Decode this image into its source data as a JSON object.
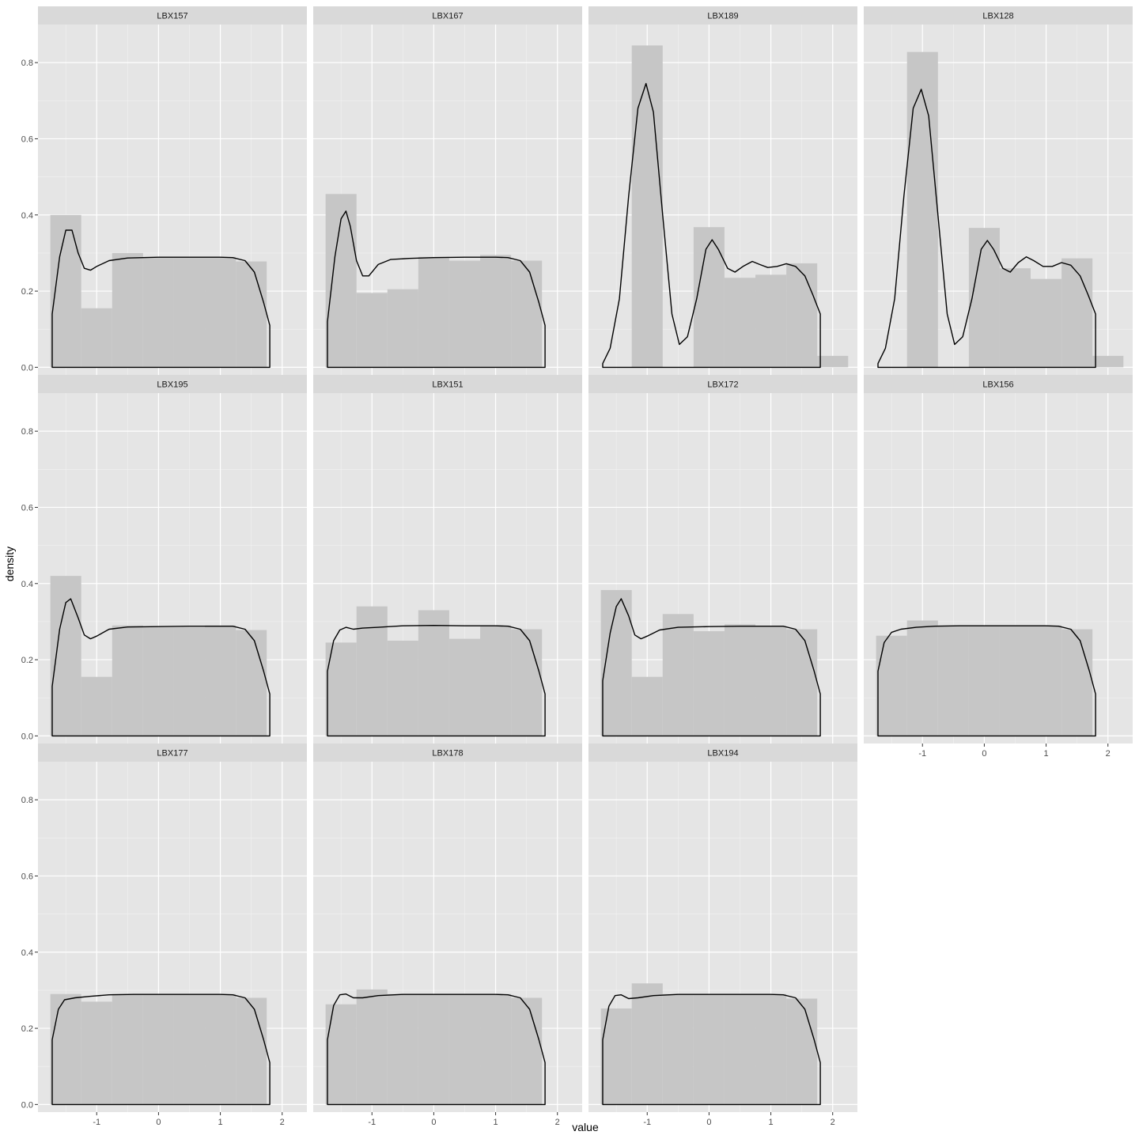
{
  "chart_data": {
    "type": "faceted-histogram-density",
    "xlabel": "value",
    "ylabel": "density",
    "xlim": [
      -1.95,
      2.4
    ],
    "ylim": [
      -0.02,
      0.9
    ],
    "x_ticks": [
      -1,
      0,
      1,
      2
    ],
    "x_tick_labels": [
      "-1",
      "0",
      "1",
      "2"
    ],
    "y_ticks": [
      0,
      0.2,
      0.4,
      0.6,
      0.8
    ],
    "y_tick_labels": [
      "0.0",
      "0.2",
      "0.4",
      "0.6",
      "0.8"
    ],
    "grid": true,
    "colors": {
      "panel_bg": "#e5e5e5",
      "strip_bg": "#d9d9d9",
      "grid": "#ffffff",
      "bar_fill": "#c6c6c6",
      "density_line": "#000000"
    },
    "bin_edges": [
      -1.75,
      -1.25,
      -0.75,
      -0.25,
      0.25,
      0.75,
      1.25,
      1.75,
      2.25
    ],
    "density_range": [
      -1.72,
      1.8
    ],
    "facets": [
      {
        "label": "LBX157",
        "bars": [
          0.4,
          0.155,
          0.3,
          0.29,
          0.29,
          0.29,
          0.278,
          0
        ],
        "density": [
          [
            -1.72,
            0.14
          ],
          [
            -1.6,
            0.29
          ],
          [
            -1.5,
            0.36
          ],
          [
            -1.4,
            0.36
          ],
          [
            -1.3,
            0.3
          ],
          [
            -1.2,
            0.26
          ],
          [
            -1.1,
            0.255
          ],
          [
            -1.0,
            0.265
          ],
          [
            -0.8,
            0.28
          ],
          [
            -0.5,
            0.287
          ],
          [
            0,
            0.289
          ],
          [
            0.5,
            0.289
          ],
          [
            1.0,
            0.289
          ],
          [
            1.2,
            0.288
          ],
          [
            1.4,
            0.28
          ],
          [
            1.55,
            0.25
          ],
          [
            1.7,
            0.17
          ],
          [
            1.8,
            0.11
          ]
        ]
      },
      {
        "label": "LBX167",
        "bars": [
          0.455,
          0.195,
          0.205,
          0.29,
          0.28,
          0.295,
          0.28,
          0
        ],
        "density": [
          [
            -1.72,
            0.12
          ],
          [
            -1.6,
            0.29
          ],
          [
            -1.5,
            0.39
          ],
          [
            -1.42,
            0.41
          ],
          [
            -1.35,
            0.37
          ],
          [
            -1.25,
            0.28
          ],
          [
            -1.15,
            0.24
          ],
          [
            -1.05,
            0.24
          ],
          [
            -0.9,
            0.27
          ],
          [
            -0.7,
            0.283
          ],
          [
            -0.4,
            0.286
          ],
          [
            0,
            0.288
          ],
          [
            0.5,
            0.289
          ],
          [
            1.0,
            0.289
          ],
          [
            1.2,
            0.288
          ],
          [
            1.4,
            0.28
          ],
          [
            1.55,
            0.25
          ],
          [
            1.7,
            0.17
          ],
          [
            1.8,
            0.11
          ]
        ]
      },
      {
        "label": "LBX189",
        "bars": [
          0,
          0.845,
          0,
          0.368,
          0.235,
          0.243,
          0.273,
          0.03
        ],
        "density": [
          [
            -1.72,
            0.01
          ],
          [
            -1.6,
            0.05
          ],
          [
            -1.45,
            0.18
          ],
          [
            -1.3,
            0.45
          ],
          [
            -1.15,
            0.68
          ],
          [
            -1.02,
            0.745
          ],
          [
            -0.9,
            0.67
          ],
          [
            -0.75,
            0.4
          ],
          [
            -0.6,
            0.14
          ],
          [
            -0.48,
            0.06
          ],
          [
            -0.35,
            0.08
          ],
          [
            -0.2,
            0.18
          ],
          [
            -0.05,
            0.31
          ],
          [
            0.05,
            0.335
          ],
          [
            0.15,
            0.31
          ],
          [
            0.3,
            0.26
          ],
          [
            0.42,
            0.25
          ],
          [
            0.55,
            0.265
          ],
          [
            0.7,
            0.278
          ],
          [
            0.82,
            0.27
          ],
          [
            0.95,
            0.262
          ],
          [
            1.1,
            0.265
          ],
          [
            1.25,
            0.272
          ],
          [
            1.4,
            0.265
          ],
          [
            1.55,
            0.24
          ],
          [
            1.68,
            0.19
          ],
          [
            1.8,
            0.14
          ]
        ]
      },
      {
        "label": "LBX128",
        "bars": [
          0,
          0.828,
          0,
          0.366,
          0.26,
          0.232,
          0.286,
          0.03
        ],
        "density": [
          [
            -1.72,
            0.01
          ],
          [
            -1.6,
            0.05
          ],
          [
            -1.45,
            0.18
          ],
          [
            -1.3,
            0.45
          ],
          [
            -1.15,
            0.68
          ],
          [
            -1.02,
            0.73
          ],
          [
            -0.9,
            0.66
          ],
          [
            -0.75,
            0.4
          ],
          [
            -0.6,
            0.14
          ],
          [
            -0.48,
            0.06
          ],
          [
            -0.35,
            0.08
          ],
          [
            -0.2,
            0.18
          ],
          [
            -0.05,
            0.31
          ],
          [
            0.05,
            0.333
          ],
          [
            0.15,
            0.31
          ],
          [
            0.3,
            0.26
          ],
          [
            0.42,
            0.25
          ],
          [
            0.55,
            0.275
          ],
          [
            0.68,
            0.29
          ],
          [
            0.8,
            0.28
          ],
          [
            0.95,
            0.265
          ],
          [
            1.1,
            0.265
          ],
          [
            1.25,
            0.275
          ],
          [
            1.4,
            0.268
          ],
          [
            1.55,
            0.24
          ],
          [
            1.68,
            0.19
          ],
          [
            1.8,
            0.14
          ]
        ]
      },
      {
        "label": "LBX195",
        "bars": [
          0.42,
          0.155,
          0.29,
          0.285,
          0.285,
          0.29,
          0.278,
          0
        ],
        "density": [
          [
            -1.72,
            0.13
          ],
          [
            -1.6,
            0.28
          ],
          [
            -1.5,
            0.35
          ],
          [
            -1.42,
            0.36
          ],
          [
            -1.3,
            0.31
          ],
          [
            -1.2,
            0.265
          ],
          [
            -1.1,
            0.255
          ],
          [
            -1.0,
            0.262
          ],
          [
            -0.8,
            0.28
          ],
          [
            -0.5,
            0.286
          ],
          [
            0,
            0.287
          ],
          [
            0.5,
            0.288
          ],
          [
            1.0,
            0.288
          ],
          [
            1.2,
            0.288
          ],
          [
            1.4,
            0.28
          ],
          [
            1.55,
            0.25
          ],
          [
            1.7,
            0.17
          ],
          [
            1.8,
            0.11
          ]
        ]
      },
      {
        "label": "LBX151",
        "bars": [
          0.245,
          0.34,
          0.25,
          0.33,
          0.255,
          0.29,
          0.28,
          0
        ],
        "density": [
          [
            -1.72,
            0.17
          ],
          [
            -1.62,
            0.25
          ],
          [
            -1.52,
            0.278
          ],
          [
            -1.42,
            0.285
          ],
          [
            -1.3,
            0.28
          ],
          [
            -1.15,
            0.283
          ],
          [
            -0.9,
            0.285
          ],
          [
            -0.5,
            0.289
          ],
          [
            0,
            0.29
          ],
          [
            0.5,
            0.289
          ],
          [
            1.0,
            0.289
          ],
          [
            1.2,
            0.288
          ],
          [
            1.4,
            0.28
          ],
          [
            1.55,
            0.25
          ],
          [
            1.7,
            0.17
          ],
          [
            1.8,
            0.11
          ]
        ]
      },
      {
        "label": "LBX172",
        "bars": [
          0.383,
          0.155,
          0.32,
          0.275,
          0.293,
          0.288,
          0.28,
          0
        ],
        "density": [
          [
            -1.72,
            0.145
          ],
          [
            -1.6,
            0.27
          ],
          [
            -1.5,
            0.34
          ],
          [
            -1.42,
            0.36
          ],
          [
            -1.3,
            0.315
          ],
          [
            -1.2,
            0.265
          ],
          [
            -1.1,
            0.255
          ],
          [
            -1.0,
            0.262
          ],
          [
            -0.8,
            0.278
          ],
          [
            -0.5,
            0.285
          ],
          [
            0,
            0.287
          ],
          [
            0.5,
            0.288
          ],
          [
            1.0,
            0.288
          ],
          [
            1.2,
            0.288
          ],
          [
            1.4,
            0.28
          ],
          [
            1.55,
            0.25
          ],
          [
            1.7,
            0.17
          ],
          [
            1.8,
            0.11
          ]
        ]
      },
      {
        "label": "LBX156",
        "bars": [
          0.263,
          0.303,
          0.29,
          0.29,
          0.29,
          0.29,
          0.28,
          0
        ],
        "density": [
          [
            -1.72,
            0.17
          ],
          [
            -1.62,
            0.245
          ],
          [
            -1.5,
            0.272
          ],
          [
            -1.35,
            0.28
          ],
          [
            -1.1,
            0.285
          ],
          [
            -0.8,
            0.288
          ],
          [
            -0.4,
            0.289
          ],
          [
            0,
            0.289
          ],
          [
            0.5,
            0.289
          ],
          [
            1.0,
            0.289
          ],
          [
            1.2,
            0.288
          ],
          [
            1.4,
            0.28
          ],
          [
            1.55,
            0.25
          ],
          [
            1.7,
            0.17
          ],
          [
            1.8,
            0.11
          ]
        ]
      },
      {
        "label": "LBX177",
        "bars": [
          0.29,
          0.27,
          0.29,
          0.29,
          0.29,
          0.29,
          0.28,
          0
        ],
        "density": [
          [
            -1.72,
            0.17
          ],
          [
            -1.62,
            0.25
          ],
          [
            -1.52,
            0.275
          ],
          [
            -1.35,
            0.28
          ],
          [
            -1.1,
            0.284
          ],
          [
            -0.8,
            0.288
          ],
          [
            -0.4,
            0.289
          ],
          [
            0,
            0.289
          ],
          [
            0.5,
            0.289
          ],
          [
            1.0,
            0.289
          ],
          [
            1.2,
            0.288
          ],
          [
            1.4,
            0.28
          ],
          [
            1.55,
            0.25
          ],
          [
            1.7,
            0.17
          ],
          [
            1.8,
            0.11
          ]
        ]
      },
      {
        "label": "LBX178",
        "bars": [
          0.263,
          0.302,
          0.29,
          0.29,
          0.29,
          0.29,
          0.28,
          0
        ],
        "density": [
          [
            -1.72,
            0.17
          ],
          [
            -1.62,
            0.26
          ],
          [
            -1.52,
            0.288
          ],
          [
            -1.42,
            0.29
          ],
          [
            -1.3,
            0.28
          ],
          [
            -1.15,
            0.28
          ],
          [
            -0.9,
            0.286
          ],
          [
            -0.5,
            0.289
          ],
          [
            0,
            0.289
          ],
          [
            0.5,
            0.289
          ],
          [
            1.0,
            0.289
          ],
          [
            1.2,
            0.288
          ],
          [
            1.4,
            0.28
          ],
          [
            1.55,
            0.25
          ],
          [
            1.7,
            0.17
          ],
          [
            1.8,
            0.11
          ]
        ]
      },
      {
        "label": "LBX194",
        "bars": [
          0.252,
          0.318,
          0.29,
          0.29,
          0.29,
          0.29,
          0.278,
          0
        ],
        "density": [
          [
            -1.72,
            0.17
          ],
          [
            -1.62,
            0.258
          ],
          [
            -1.52,
            0.286
          ],
          [
            -1.42,
            0.288
          ],
          [
            -1.3,
            0.278
          ],
          [
            -1.15,
            0.28
          ],
          [
            -0.9,
            0.286
          ],
          [
            -0.5,
            0.289
          ],
          [
            0,
            0.289
          ],
          [
            0.5,
            0.289
          ],
          [
            1.0,
            0.289
          ],
          [
            1.2,
            0.288
          ],
          [
            1.4,
            0.28
          ],
          [
            1.55,
            0.25
          ],
          [
            1.7,
            0.17
          ],
          [
            1.8,
            0.11
          ]
        ]
      }
    ]
  }
}
